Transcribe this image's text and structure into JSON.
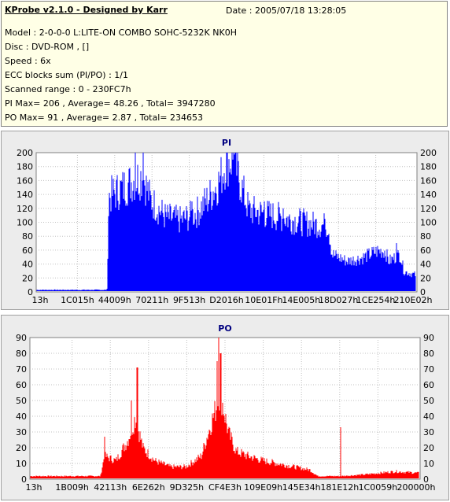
{
  "info": {
    "title": "KProbe v2.1.0 - Designed by Karr",
    "date": "Date : 2005/07/18 13:28:05",
    "lines": [
      "Model : 2-0-0-0 L:LITE-ON COMBO SOHC-5232K NK0H",
      "Disc : DVD-ROM ,  []",
      "Speed : 6x",
      "ECC blocks sum (PI/PO) : 1/1",
      "Scanned range : 0 - 230FC7h",
      "PI Max= 206 , Average= 48.26 , Total= 3947280",
      "PO Max= 91 , Average= 2.87 , Total= 234653"
    ]
  },
  "chart_data": [
    {
      "type": "bar",
      "title": "PI",
      "color": "#0000ff",
      "ylim": [
        0,
        200
      ],
      "yticks": [
        0,
        20,
        40,
        60,
        80,
        100,
        120,
        140,
        160,
        180,
        200
      ],
      "xtick_labels": [
        "13h",
        "1C015h",
        "44009h",
        "70211h",
        "9F513h",
        "D2016h",
        "10E01Fh",
        "14E005h",
        "18D027h",
        "1CE254h",
        "210E02h"
      ],
      "grid": true,
      "profile": [
        [
          0,
          3
        ],
        [
          0.185,
          3
        ],
        [
          0.19,
          140
        ],
        [
          0.22,
          150
        ],
        [
          0.26,
          165
        ],
        [
          0.28,
          170
        ],
        [
          0.3,
          135
        ],
        [
          0.34,
          110
        ],
        [
          0.38,
          105
        ],
        [
          0.42,
          115
        ],
        [
          0.45,
          135
        ],
        [
          0.48,
          160
        ],
        [
          0.5,
          190
        ],
        [
          0.52,
          195
        ],
        [
          0.54,
          155
        ],
        [
          0.56,
          120
        ],
        [
          0.6,
          115
        ],
        [
          0.64,
          110
        ],
        [
          0.68,
          105
        ],
        [
          0.72,
          100
        ],
        [
          0.75,
          98
        ],
        [
          0.77,
          97
        ],
        [
          0.78,
          55
        ],
        [
          0.82,
          45
        ],
        [
          0.86,
          50
        ],
        [
          0.9,
          60
        ],
        [
          0.92,
          60
        ],
        [
          0.93,
          45
        ],
        [
          0.96,
          55
        ],
        [
          0.97,
          30
        ],
        [
          1.0,
          25
        ]
      ],
      "spikes": [
        [
          0.26,
          200
        ],
        [
          0.28,
          206
        ],
        [
          0.36,
          110
        ],
        [
          0.41,
          130
        ],
        [
          0.52,
          205
        ],
        [
          0.53,
          200
        ],
        [
          0.6,
          130
        ],
        [
          0.65,
          120
        ],
        [
          0.73,
          102
        ],
        [
          0.76,
          105
        ],
        [
          0.95,
          70
        ]
      ]
    },
    {
      "type": "bar",
      "title": "PO",
      "color": "#ff0000",
      "ylim": [
        0,
        90
      ],
      "yticks": [
        0,
        10,
        20,
        30,
        40,
        50,
        60,
        70,
        80,
        90
      ],
      "xtick_labels": [
        "13h",
        "1B009h",
        "42113h",
        "6E262h",
        "9D325h",
        "CF4E3h",
        "109E09h",
        "145E34h",
        "181E12h",
        "1C0059h",
        "200000h"
      ],
      "grid": true,
      "profile": [
        [
          0,
          2
        ],
        [
          0.18,
          2
        ],
        [
          0.19,
          15
        ],
        [
          0.22,
          12
        ],
        [
          0.25,
          25
        ],
        [
          0.27,
          40
        ],
        [
          0.29,
          20
        ],
        [
          0.32,
          12
        ],
        [
          0.36,
          8
        ],
        [
          0.4,
          8
        ],
        [
          0.44,
          15
        ],
        [
          0.47,
          40
        ],
        [
          0.49,
          55
        ],
        [
          0.51,
          30
        ],
        [
          0.53,
          18
        ],
        [
          0.56,
          15
        ],
        [
          0.6,
          12
        ],
        [
          0.64,
          10
        ],
        [
          0.68,
          8
        ],
        [
          0.72,
          6
        ],
        [
          0.74,
          2
        ],
        [
          0.8,
          2
        ],
        [
          0.86,
          3
        ],
        [
          0.9,
          4
        ],
        [
          0.94,
          5
        ],
        [
          1.0,
          4
        ]
      ],
      "spikes": [
        [
          0.19,
          27
        ],
        [
          0.26,
          50
        ],
        [
          0.275,
          71
        ],
        [
          0.48,
          75
        ],
        [
          0.485,
          91
        ],
        [
          0.49,
          80
        ],
        [
          0.8,
          33
        ]
      ]
    }
  ]
}
